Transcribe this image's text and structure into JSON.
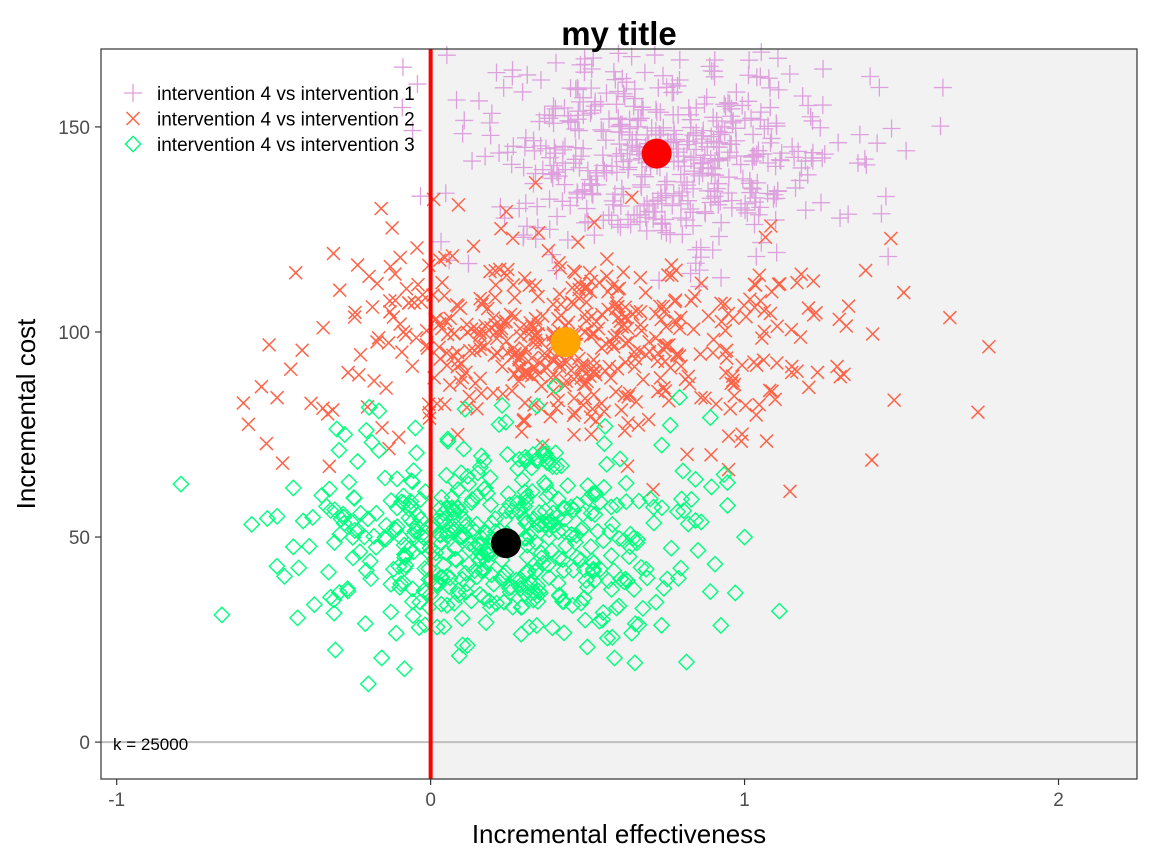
{
  "chart_data": {
    "type": "scatter",
    "title": "my title",
    "xlabel": "Incremental effectiveness",
    "ylabel": "Incremental cost",
    "xlim": [
      -1.05,
      2.25
    ],
    "ylim": [
      -9,
      169
    ],
    "xticks": [
      -1,
      0,
      1,
      2
    ],
    "xtick_labels": [
      "-1",
      "0",
      "1",
      "2"
    ],
    "yticks": [
      0,
      50,
      100,
      150
    ],
    "ytick_labels": [
      "0",
      "50",
      "100",
      "150"
    ],
    "grid": false,
    "legend_position": "top-left",
    "annotation": "k = 25000",
    "threshold_line": {
      "type": "vertical",
      "x": 0,
      "color": "#ff0000"
    },
    "zero_cost_line": {
      "type": "horizontal",
      "y": 0,
      "color": "#bebebe"
    },
    "shaded_region": {
      "x_from": 0,
      "color": "#f2f2f2"
    },
    "series": [
      {
        "name": "intervention 4 vs intervention 1",
        "marker": "plus",
        "color": "#dda0dd",
        "sample_size": 500,
        "mean": {
          "x": 0.72,
          "y": 143.5,
          "color": "#ff0000"
        },
        "sd": {
          "x": 0.31,
          "y": 12.5
        }
      },
      {
        "name": "intervention 4 vs intervention 2",
        "marker": "cross",
        "color": "#ff6347",
        "sample_size": 500,
        "mean": {
          "x": 0.43,
          "y": 97.5,
          "color": "#ffa500"
        },
        "sd": {
          "x": 0.42,
          "y": 12.5
        }
      },
      {
        "name": "intervention 4 vs intervention 3",
        "marker": "diamond",
        "color": "#00ff7f",
        "sample_size": 500,
        "mean": {
          "x": 0.24,
          "y": 48.5,
          "color": "#000000"
        },
        "sd": {
          "x": 0.33,
          "y": 13.5
        }
      }
    ]
  }
}
